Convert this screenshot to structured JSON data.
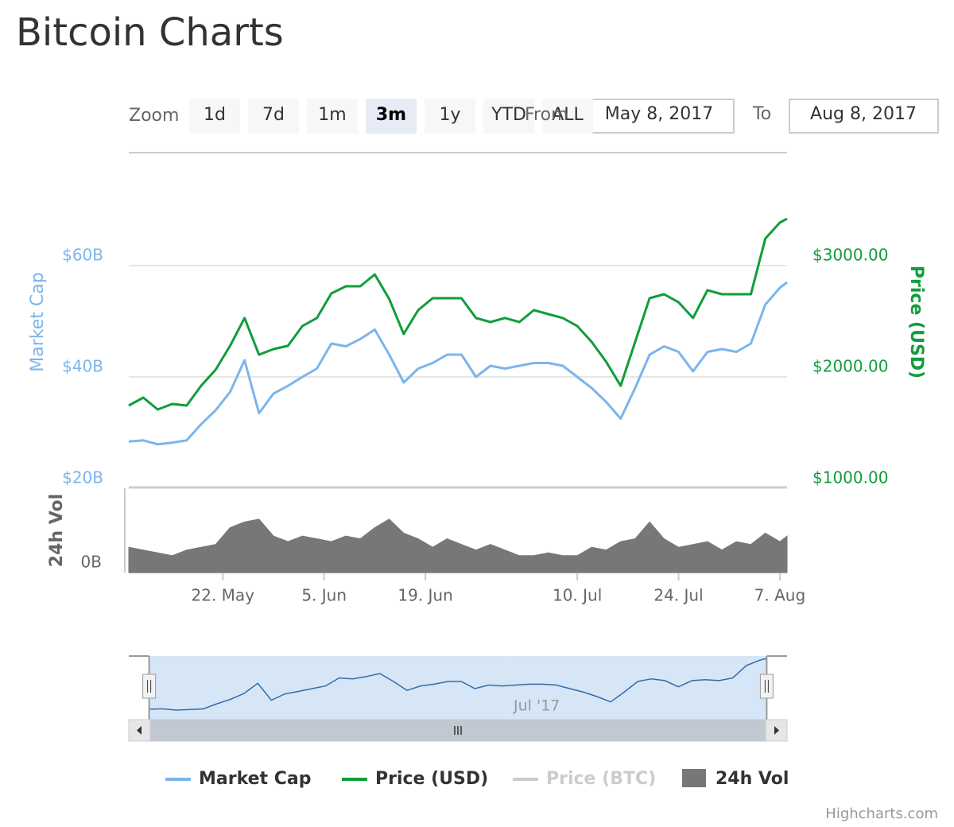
{
  "title": "Bitcoin Charts",
  "range_selector": {
    "zoom_label": "Zoom",
    "buttons": [
      "1d",
      "7d",
      "1m",
      "3m",
      "1y",
      "YTD",
      "ALL"
    ],
    "selected": 3,
    "from_label": "From",
    "from": "May 8, 2017",
    "to_label": "To",
    "to": "Aug 8, 2017"
  },
  "chart_data": {
    "type": "line",
    "ylabel": "Market Cap",
    "y2label": "Price (USD)",
    "y3label": "24h Vol",
    "x": [
      "2017-05-09",
      "2017-05-11",
      "2017-05-13",
      "2017-05-15",
      "2017-05-17",
      "2017-05-19",
      "2017-05-21",
      "2017-05-23",
      "2017-05-25",
      "2017-05-27",
      "2017-05-29",
      "2017-05-31",
      "2017-06-02",
      "2017-06-04",
      "2017-06-06",
      "2017-06-08",
      "2017-06-10",
      "2017-06-12",
      "2017-06-14",
      "2017-06-16",
      "2017-06-18",
      "2017-06-20",
      "2017-06-22",
      "2017-06-24",
      "2017-06-26",
      "2017-06-28",
      "2017-06-30",
      "2017-07-02",
      "2017-07-04",
      "2017-07-06",
      "2017-07-08",
      "2017-07-10",
      "2017-07-12",
      "2017-07-14",
      "2017-07-16",
      "2017-07-18",
      "2017-07-20",
      "2017-07-22",
      "2017-07-24",
      "2017-07-26",
      "2017-07-28",
      "2017-07-30",
      "2017-08-01",
      "2017-08-03",
      "2017-08-05",
      "2017-08-07",
      "2017-08-08"
    ],
    "series": [
      {
        "name": "Market Cap",
        "color": "#7cb5ec",
        "values": [
          28.4,
          28.6,
          27.9,
          28.2,
          28.6,
          31.5,
          34.0,
          37.3,
          43.0,
          33.5,
          37.0,
          38.4,
          40.0,
          41.5,
          46.0,
          45.5,
          46.8,
          48.5,
          44.0,
          39.0,
          41.5,
          42.5,
          44.0,
          44.0,
          40.0,
          42.0,
          41.5,
          42.0,
          42.5,
          42.5,
          42.0,
          40.0,
          38.0,
          35.5,
          32.5,
          38.0,
          44.0,
          45.5,
          44.5,
          41.0,
          44.5,
          45.0,
          44.5,
          46.0,
          53.0,
          56.0,
          57.0
        ]
      },
      {
        "name": "Price (USD)",
        "color": "#109d3b",
        "axis": "y2",
        "values": [
          1743,
          1814,
          1707,
          1757,
          1743,
          1921,
          2064,
          2279,
          2529,
          2200,
          2250,
          2279,
          2457,
          2529,
          2750,
          2814,
          2814,
          2921,
          2700,
          2386,
          2600,
          2707,
          2707,
          2707,
          2529,
          2493,
          2529,
          2493,
          2600,
          2564,
          2529,
          2457,
          2314,
          2136,
          1921,
          2314,
          2707,
          2743,
          2671,
          2529,
          2779,
          2743,
          2743,
          2743,
          3243,
          3386,
          3421
        ]
      },
      {
        "name": "Price (BTC)",
        "color": "#cccccc",
        "visible": false
      },
      {
        "name": "24h Vol",
        "color": "#777777",
        "axis": "y3",
        "type": "area",
        "values": [
          0.9,
          0.8,
          0.7,
          0.6,
          0.8,
          0.9,
          1.0,
          1.6,
          1.8,
          1.9,
          1.3,
          1.1,
          1.3,
          1.2,
          1.1,
          1.3,
          1.2,
          1.6,
          1.9,
          1.4,
          1.2,
          0.9,
          1.2,
          1.0,
          0.8,
          1.0,
          0.8,
          0.6,
          0.6,
          0.7,
          0.6,
          0.6,
          0.9,
          0.8,
          1.1,
          1.2,
          1.8,
          1.2,
          0.9,
          1.0,
          1.1,
          0.8,
          1.1,
          1.0,
          1.4,
          1.1,
          1.3
        ]
      }
    ],
    "xlim": [
      "2017-05-09",
      "2017-08-08"
    ],
    "xticks": [
      {
        "value": "2017-05-22",
        "label": "22. May"
      },
      {
        "value": "2017-06-05",
        "label": "5. Jun"
      },
      {
        "value": "2017-06-19",
        "label": "19. Jun"
      },
      {
        "value": "2017-07-10",
        "label": "10. Jul"
      },
      {
        "value": "2017-07-24",
        "label": "24. Jul"
      },
      {
        "value": "2017-08-07",
        "label": "7. Aug"
      }
    ],
    "ylim": [
      20,
      80
    ],
    "yticks": [
      {
        "value": 20,
        "label": "$20B"
      },
      {
        "value": 40,
        "label": "$40B"
      },
      {
        "value": 60,
        "label": "$60B"
      }
    ],
    "y2lim": [
      1000,
      4000
    ],
    "y2ticks": [
      {
        "value": 1000,
        "label": "$1000.00"
      },
      {
        "value": 2000,
        "label": "$2000.00"
      },
      {
        "value": 3000,
        "label": "$3000.00"
      }
    ],
    "y3lim": [
      0,
      3
    ],
    "y3ticks": [
      {
        "value": 0,
        "label": "0B"
      }
    ],
    "grid": true,
    "legend": "bottom",
    "navigator": {
      "series": 0,
      "xlim": [
        "2017-05-06",
        "2017-08-11"
      ],
      "ylim": [
        27,
        57
      ],
      "xticks": [
        {
          "value": "2017-07-01",
          "label": "Jul '17"
        }
      ]
    }
  },
  "credits": "Highcharts.com"
}
